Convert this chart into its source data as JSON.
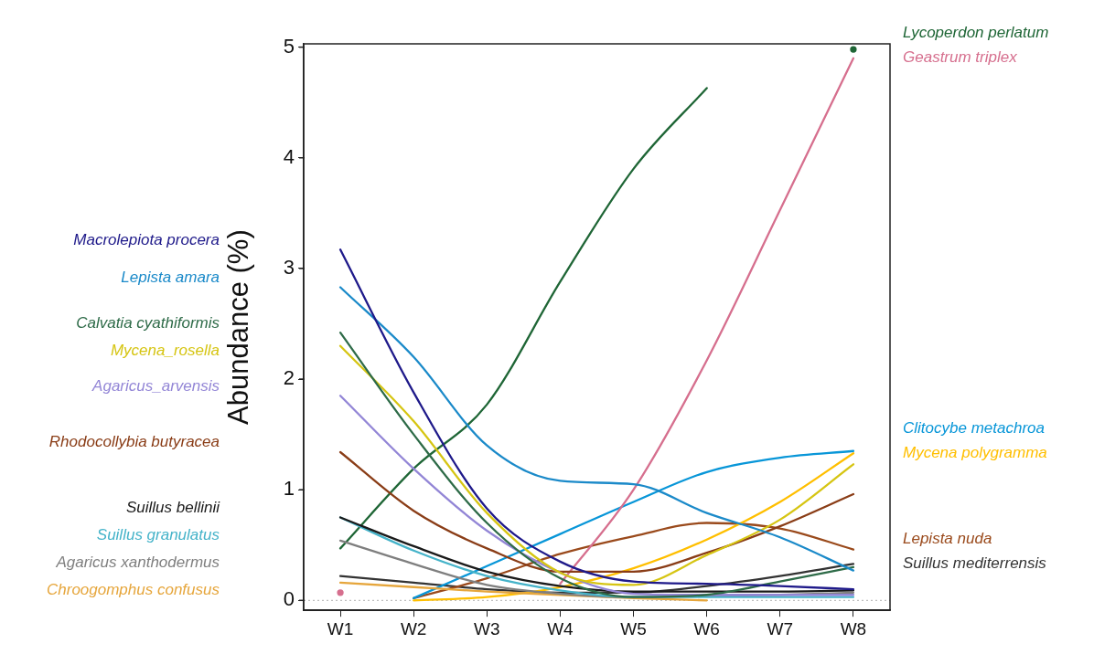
{
  "chart_data": {
    "type": "line",
    "ylabel": "Abundance (%)",
    "categories": [
      "W1",
      "W2",
      "W3",
      "W4",
      "W5",
      "W6",
      "W7",
      "W8"
    ],
    "ylim": [
      -0.09,
      5.03
    ],
    "yticks": [
      0,
      1,
      2,
      3,
      4,
      5
    ],
    "grid": false,
    "marker": "none",
    "line_style": "solid",
    "ref_lines": [
      {
        "axis": "y",
        "value": 0,
        "color": "#b0b0b0",
        "line_style": "dotted"
      }
    ],
    "series": [
      {
        "name": "Macrolepiota procera",
        "color": "#1f1a8a",
        "values": [
          3.17,
          1.88,
          0.83,
          0.35,
          0.17,
          0.15,
          0.13,
          0.1
        ]
      },
      {
        "name": "Lepista amara",
        "color": "#1b8ac9",
        "values": [
          2.83,
          2.2,
          1.4,
          1.08,
          1.05,
          0.79,
          0.57,
          0.27
        ]
      },
      {
        "name": "Calvatia cyathiformis",
        "color": "#2e6b48",
        "values": [
          2.42,
          1.5,
          0.7,
          0.2,
          0.03,
          0.05,
          0.17,
          0.3
        ]
      },
      {
        "name": "Mycena_rosella",
        "color": "#d6c513",
        "values": [
          2.3,
          1.62,
          0.79,
          0.25,
          0.14,
          0.41,
          0.73,
          1.23
        ]
      },
      {
        "name": "Agaricus_arvensis",
        "color": "#9386d6",
        "values": [
          1.85,
          1.19,
          0.63,
          0.25,
          0.06,
          0.05,
          0.05,
          0.05
        ]
      },
      {
        "name": "Rhodocollybia butyracea",
        "color": "#8a3d17",
        "values": [
          1.34,
          0.81,
          0.47,
          0.26,
          0.26,
          0.43,
          0.67,
          0.96
        ]
      },
      {
        "name": "Suillus bellinii",
        "color": "#1a1a1a",
        "values": [
          0.75,
          0.49,
          0.26,
          0.13,
          0.08,
          0.08,
          0.08,
          0.09
        ]
      },
      {
        "name": "Suillus granulatus",
        "color": "#45b3c9",
        "values": [
          0.75,
          0.45,
          0.22,
          0.09,
          0.03,
          0.03,
          0.03,
          0.03
        ]
      },
      {
        "name": "Agaricus xanthodermus",
        "color": "#7f7f7f",
        "values": [
          0.54,
          0.33,
          0.14,
          0.06,
          0.03,
          0.04,
          0.05,
          0.07
        ]
      },
      {
        "name": "Chroogomphus confusus",
        "color": "#e6a63c",
        "values": [
          0.16,
          0.12,
          0.08,
          0.05,
          0.02,
          0,
          null,
          null
        ]
      },
      {
        "name": "Lycoperdon perlatum",
        "color": "#1f6636",
        "values": [
          0.47,
          1.19,
          1.77,
          2.88,
          3.9,
          4.63,
          null,
          4.98
        ]
      },
      {
        "name": "Geastrum triplex",
        "color": "#d66f8e",
        "values": [
          0.07,
          null,
          null,
          0.15,
          1.0,
          2.17,
          3.53,
          4.9
        ]
      },
      {
        "name": "Clitocybe metachroa",
        "color": "#0896d8",
        "values": [
          null,
          0.02,
          0.31,
          0.6,
          0.89,
          1.16,
          1.29,
          1.35
        ]
      },
      {
        "name": "Mycena polygramma",
        "color": "#ffbf00",
        "values": [
          null,
          0,
          0.03,
          0.12,
          0.29,
          0.55,
          0.89,
          1.33
        ]
      },
      {
        "name": "Lepista nuda",
        "color": "#9a4a1c",
        "values": [
          null,
          0.02,
          0.2,
          0.42,
          0.58,
          0.7,
          0.65,
          0.46
        ]
      },
      {
        "name": "Suillus mediterrensis",
        "color": "#333333",
        "values": [
          0.22,
          0.16,
          0.1,
          0.07,
          0.07,
          0.13,
          0.22,
          0.33
        ]
      }
    ]
  }
}
